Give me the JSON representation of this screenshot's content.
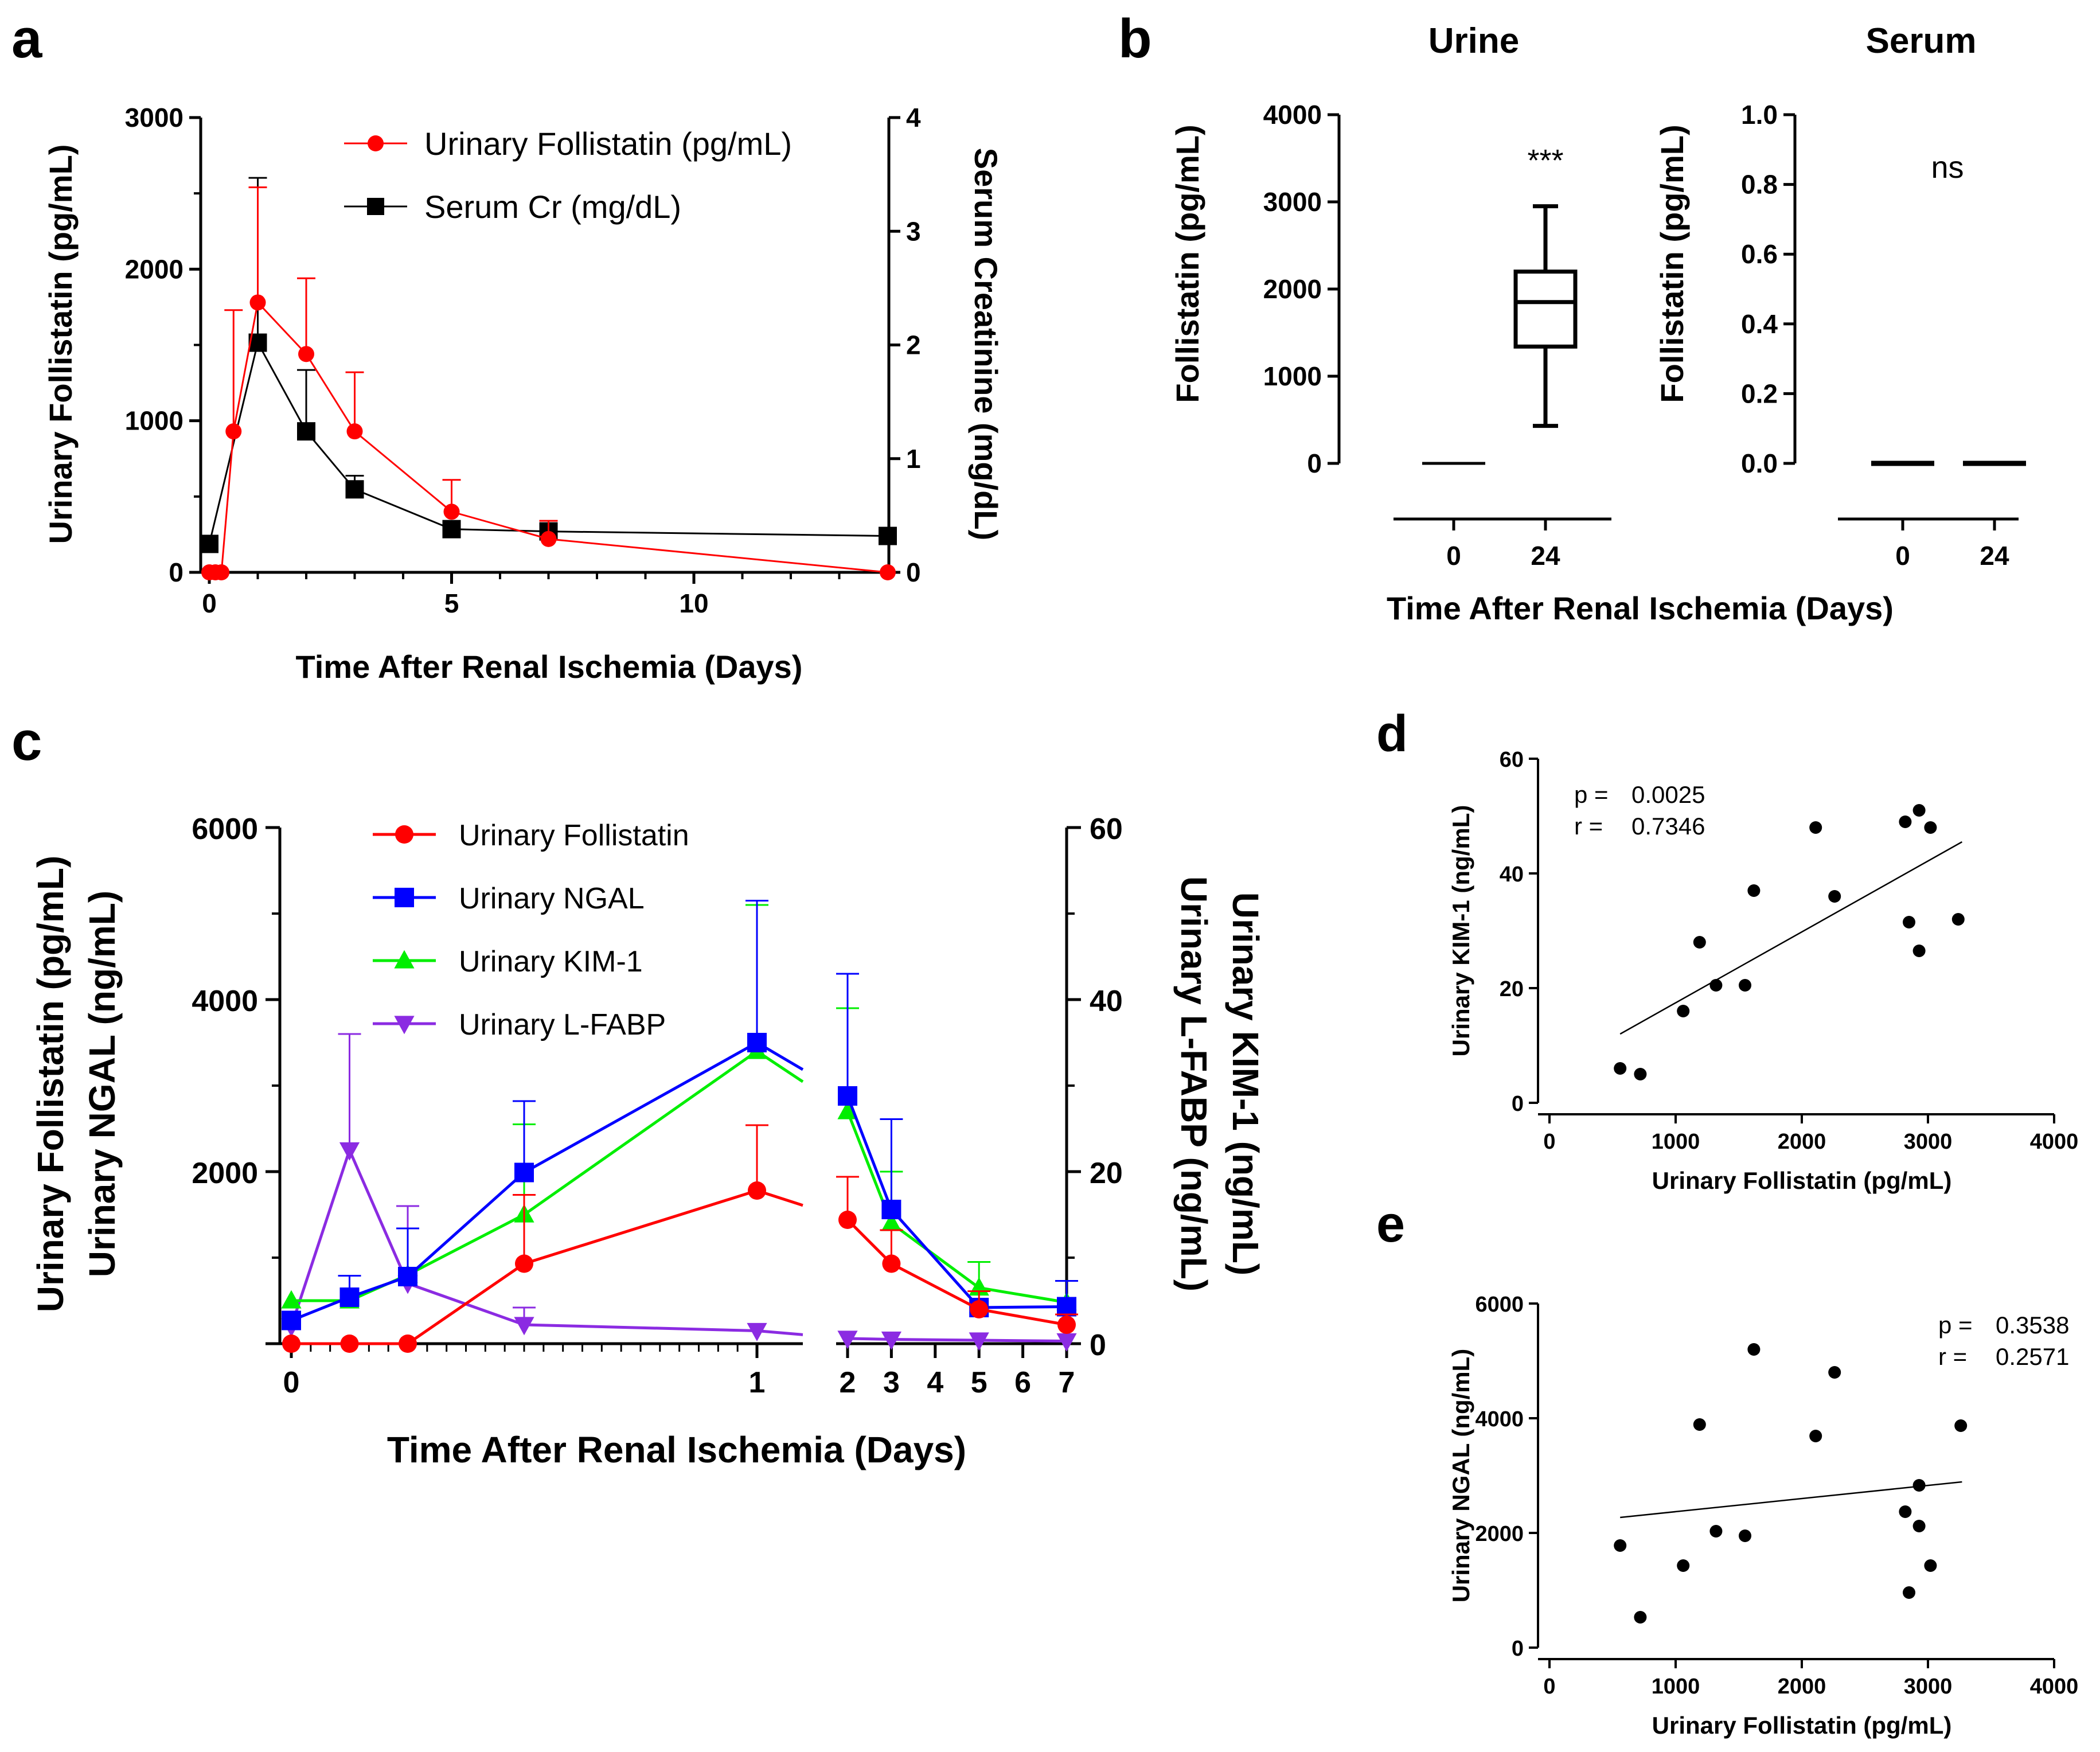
{
  "panels": {
    "a": {
      "label": "a"
    },
    "b": {
      "label": "b"
    },
    "c": {
      "label": "c"
    },
    "d": {
      "label": "d"
    },
    "e": {
      "label": "e"
    }
  },
  "chart_data": [
    {
      "id": "a",
      "type": "line",
      "title": "",
      "xlabel": "Time After Renal Ischemia (Days)",
      "ylabel": "Urinary Follistatin (pg/mL)",
      "y2label": "Serum Creatinine (mg/dL)",
      "xlim": [
        0,
        14
      ],
      "ylim": [
        0,
        3000
      ],
      "y2lim": [
        0,
        4
      ],
      "xticks": [
        0,
        5,
        10
      ],
      "yticks": [
        0,
        1000,
        2000,
        3000
      ],
      "y2ticks": [
        0,
        1,
        2,
        3,
        4
      ],
      "legend_position": "top-right",
      "series": [
        {
          "name": "Urinary Follistatin (pg/mL)",
          "axis": "left",
          "color": "#ff0000",
          "marker": "circle",
          "x": [
            0,
            0.125,
            0.25,
            0.5,
            1,
            2,
            3,
            5,
            7,
            14
          ],
          "y": [
            0,
            0,
            0,
            930,
            1780,
            1440,
            930,
            400,
            220,
            0
          ],
          "err": [
            0,
            0,
            0,
            800,
            760,
            500,
            390,
            210,
            120,
            0
          ]
        },
        {
          "name": "Serum Cr (mg/dL)",
          "axis": "right",
          "color": "#000000",
          "marker": "square",
          "x": [
            0,
            1,
            2,
            3,
            5,
            7,
            14
          ],
          "y": [
            0.25,
            2.02,
            1.24,
            0.73,
            0.38,
            0.36,
            0.32
          ],
          "err": [
            0,
            1.45,
            0.54,
            0.12,
            0,
            0,
            0
          ]
        }
      ]
    },
    {
      "id": "b",
      "type": "box",
      "subpanels": [
        {
          "title": "Urine",
          "ylabel": "Follistatin (pg/mL)",
          "ylim": [
            0,
            4000
          ],
          "yticks": [
            0,
            1000,
            2000,
            3000,
            4000
          ],
          "categories": [
            "0",
            "24"
          ],
          "boxes": [
            {
              "min": 0,
              "q1": 0,
              "median": 0,
              "q3": 0,
              "max": 0
            },
            {
              "min": 430,
              "q1": 1340,
              "median": 1850,
              "q3": 2200,
              "max": 2950
            }
          ],
          "annotation": "***"
        },
        {
          "title": "Serum",
          "ylabel": "Follistatin (pg/mL)",
          "ylim": [
            0,
            1.0
          ],
          "yticks": [
            "0.0",
            "0.2",
            "0.4",
            "0.6",
            "0.8",
            "1.0"
          ],
          "categories": [
            "0",
            "24"
          ],
          "boxes": [
            {
              "min": 0,
              "q1": 0,
              "median": 0,
              "q3": 0,
              "max": 0
            },
            {
              "min": 0,
              "q1": 0,
              "median": 0,
              "q3": 0,
              "max": 0
            }
          ],
          "annotation": "ns"
        }
      ],
      "xlabel": "Time After Renal Ischemia (Days)"
    },
    {
      "id": "c",
      "type": "line",
      "xlabel": "Time After Renal Ischemia (Days)",
      "ylabel_lines": [
        "Urinary Follistatin (pg/mL)",
        "Urinary NGAL (ng/mL)"
      ],
      "y2label_lines": [
        "Urinary KIM-1 (ng/mL)",
        "Urinary L-FABP (ng/mL)"
      ],
      "ylim": [
        0,
        6000
      ],
      "y2lim": [
        0,
        60
      ],
      "yticks": [
        2000,
        4000,
        6000
      ],
      "y2ticks": [
        0,
        20,
        40,
        60
      ],
      "xticks_segment1": [
        "0",
        "1"
      ],
      "xticks_segment2": [
        "2",
        "3",
        "4",
        "5",
        "6",
        "7"
      ],
      "legend_position": "top-left",
      "series": [
        {
          "name": "Urinary Follistatin",
          "color": "#ff0000",
          "marker": "circle",
          "x": [
            0,
            0.125,
            0.25,
            0.5,
            1,
            2,
            3,
            5,
            7
          ],
          "y": [
            0,
            0,
            0,
            930,
            1780,
            1440,
            930,
            400,
            220
          ],
          "err": [
            0,
            0,
            0,
            800,
            760,
            500,
            390,
            210,
            120
          ]
        },
        {
          "name": "Urinary NGAL",
          "color": "#0000ff",
          "marker": "square",
          "x": [
            0,
            0.125,
            0.25,
            0.5,
            1,
            2,
            3,
            5,
            7
          ],
          "y": [
            270,
            540,
            780,
            1990,
            3500,
            2880,
            1560,
            420,
            430
          ],
          "err": [
            0,
            250,
            560,
            830,
            1650,
            1420,
            1050,
            0,
            300
          ]
        },
        {
          "name": "Urinary KIM-1",
          "color": "#00ee00",
          "marker": "triangle-up",
          "x": [
            0,
            0.125,
            0.25,
            0.5,
            1,
            2,
            3,
            5,
            7
          ],
          "y": [
            5,
            5,
            8,
            15,
            34,
            27,
            14,
            6.5,
            4.8
          ],
          "err": [
            0,
            0,
            0,
            10.5,
            17,
            12,
            6,
            3,
            0
          ]
        },
        {
          "name": "Urinary L-FABP",
          "color": "#8b2be2",
          "marker": "triangle-down",
          "x": [
            0,
            0.125,
            0.25,
            0.5,
            1,
            2,
            3,
            5,
            7
          ],
          "y": [
            2,
            22.5,
            7,
            2.2,
            1.5,
            0.6,
            0.5,
            0.4,
            0.3
          ],
          "err": [
            0,
            13.5,
            9,
            2,
            0,
            0,
            0,
            0,
            0
          ]
        }
      ]
    },
    {
      "id": "d",
      "type": "scatter",
      "xlabel": "Urinary Follistatin (pg/mL)",
      "ylabel": "Urinary KIM-1 (ng/mL)",
      "xlim": [
        0,
        4000
      ],
      "ylim": [
        0,
        60
      ],
      "xticks": [
        0,
        1000,
        2000,
        3000,
        4000
      ],
      "yticks": [
        0,
        20,
        40,
        60
      ],
      "stats": {
        "p_label": "p =",
        "p": "0.0025",
        "r_label": "r =",
        "r": "0.7346"
      },
      "points": [
        [
          560,
          6
        ],
        [
          720,
          5
        ],
        [
          1060,
          16
        ],
        [
          1190,
          28
        ],
        [
          1320,
          20.5
        ],
        [
          1550,
          20.5
        ],
        [
          1620,
          37
        ],
        [
          2110,
          48
        ],
        [
          2260,
          36
        ],
        [
          2820,
          49
        ],
        [
          2850,
          31.5
        ],
        [
          2930,
          51
        ],
        [
          2930,
          26.5
        ],
        [
          3020,
          48
        ],
        [
          3240,
          32
        ]
      ],
      "fit": {
        "x": [
          560,
          3270
        ],
        "y": [
          12,
          45.5
        ]
      }
    },
    {
      "id": "e",
      "type": "scatter",
      "xlabel": "Urinary Follistatin (pg/mL)",
      "ylabel": "Urinary NGAL (ng/mL)",
      "xlim": [
        0,
        4000
      ],
      "ylim": [
        0,
        6000
      ],
      "xticks": [
        0,
        1000,
        2000,
        3000,
        4000
      ],
      "yticks": [
        0,
        2000,
        4000,
        6000
      ],
      "stats": {
        "p_label": "p =",
        "p": "0.3538",
        "r_label": "r =",
        "r": "0.2571"
      },
      "points": [
        [
          560,
          1780
        ],
        [
          720,
          530
        ],
        [
          1060,
          1430
        ],
        [
          1190,
          3890
        ],
        [
          1320,
          2030
        ],
        [
          1550,
          1950
        ],
        [
          1620,
          5200
        ],
        [
          2110,
          3690
        ],
        [
          2260,
          4800
        ],
        [
          2820,
          2370
        ],
        [
          2850,
          960
        ],
        [
          2930,
          2830
        ],
        [
          2930,
          2120
        ],
        [
          3020,
          1430
        ],
        [
          3260,
          3870
        ]
      ],
      "fit": {
        "x": [
          560,
          3270
        ],
        "y": [
          2270,
          2890
        ]
      }
    }
  ]
}
